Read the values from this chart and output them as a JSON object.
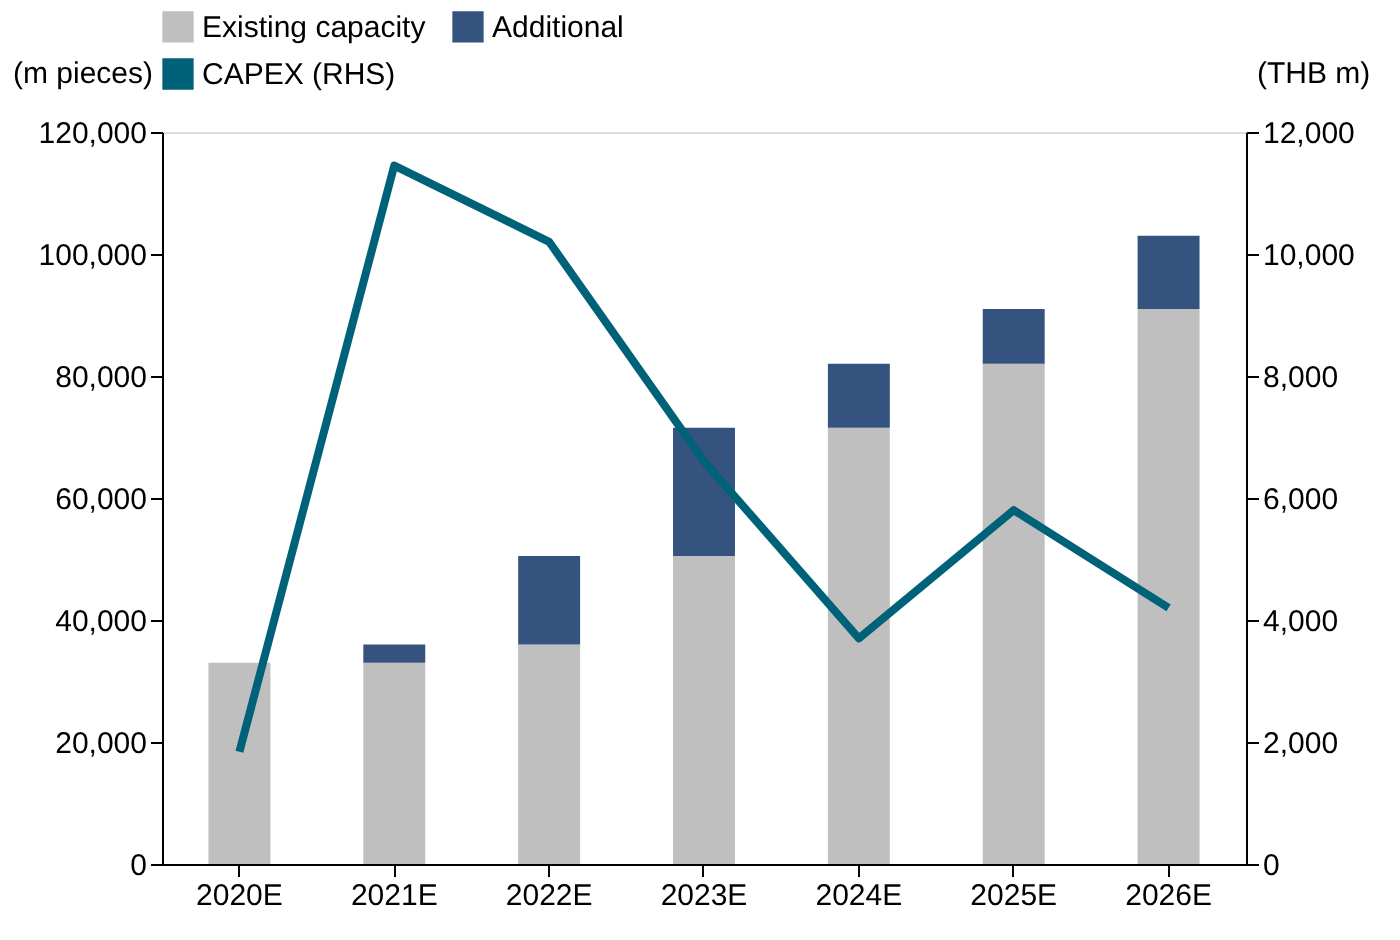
{
  "chart_data": {
    "type": "bar",
    "stacked": true,
    "ylabel": "(m pieces)",
    "y2label": "(THB m)",
    "categories": [
      "2020E",
      "2021E",
      "2022E",
      "2023E",
      "2024E",
      "2025E",
      "2026E"
    ],
    "series": [
      {
        "name": "Existing capacity",
        "color": "#bfbfbf",
        "values": [
          33000,
          33000,
          36000,
          50500,
          71500,
          82000,
          91000
        ]
      },
      {
        "name": "Additional",
        "color": "#34537f",
        "values": [
          null,
          3000,
          14500,
          21000,
          10500,
          9000,
          12000
        ]
      },
      {
        "name": "CAPEX (RHS)",
        "type": "line",
        "axis": "y2",
        "color": "#006278",
        "values": [
          1840,
          11450,
          10200,
          6600,
          3700,
          5800,
          4200
        ]
      }
    ],
    "ylim": [
      0,
      120000
    ],
    "yticks": [
      0,
      {
        "value": 20000,
        "label": "20,000"
      },
      {
        "value": 40000,
        "label": "40,000"
      },
      {
        "value": 60000,
        "label": "60,000"
      },
      {
        "value": 80000,
        "label": "80,000"
      },
      {
        "value": 100000,
        "label": "100,000"
      },
      {
        "value": 120000,
        "label": "120,000"
      }
    ],
    "y2lim": [
      0,
      12000
    ],
    "y2ticks": [
      0,
      {
        "value": 2000,
        "label": "2,000"
      },
      {
        "value": 4000,
        "label": "4,000"
      },
      {
        "value": 6000,
        "label": "6,000"
      },
      {
        "value": 8000,
        "label": "8,000"
      },
      {
        "value": 10000,
        "label": "10,000"
      },
      {
        "value": 12000,
        "label": "12,000"
      }
    ],
    "grid": false,
    "legend": "top"
  }
}
